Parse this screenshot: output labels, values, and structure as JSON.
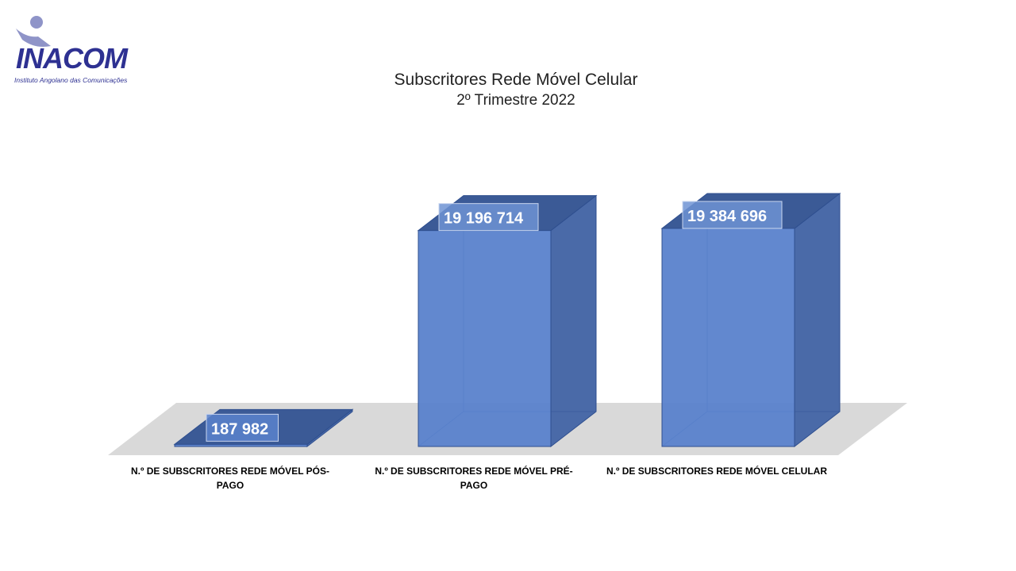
{
  "logo": {
    "wordmark": "INACOM",
    "subtitle": "Instituto Angolano das Comunicações"
  },
  "chart_data": {
    "type": "bar",
    "title": "Subscritores  Rede Móvel Celular",
    "subtitle": "2º Trimestre 2022",
    "categories": [
      [
        "N.º DE SUBSCRITORES REDE MÓVEL PÓS-",
        "PAGO"
      ],
      [
        "N.º DE SUBSCRITORES REDE MÓVEL PRÉ-",
        "PAGO"
      ],
      [
        "N.º DE SUBSCRITORES REDE MÓVEL CELULAR"
      ]
    ],
    "values": [
      187982,
      19196714,
      19384696
    ],
    "value_labels": [
      "187 982",
      "19 196 714",
      "19 384 696"
    ],
    "style": "3d-column",
    "bar_color": "#5a82cc",
    "grid": false,
    "legend": "none"
  }
}
